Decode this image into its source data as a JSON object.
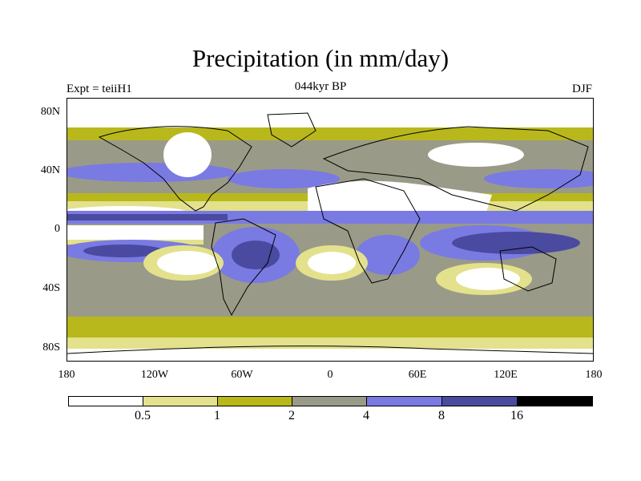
{
  "title": "Precipitation (in mm/day)",
  "left_label": "Expt = teiiH1",
  "center_label": "044kyr BP",
  "right_label": "DJF",
  "lat_labels": [
    "80N",
    "40N",
    "0",
    "40S",
    "80S"
  ],
  "lon_labels": [
    "180",
    "120W",
    "60W",
    "0",
    "60E",
    "120E",
    "180"
  ],
  "colorbar": {
    "levels": [
      "0.5",
      "1",
      "2",
      "4",
      "8",
      "16"
    ],
    "colors": [
      "#ffffff",
      "#e3e18c",
      "#b8b81c",
      "#9a9a88",
      "#7a7ae3",
      "#4a4aa0",
      "#000000"
    ]
  }
}
